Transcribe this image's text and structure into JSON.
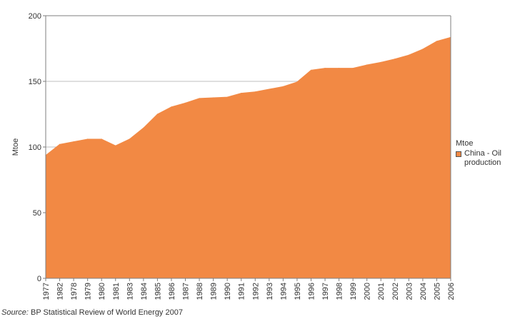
{
  "chart_data": {
    "type": "area",
    "x": [
      "1977",
      "1982",
      "1978",
      "1979",
      "1980",
      "1981",
      "1983",
      "1984",
      "1985",
      "1986",
      "1987",
      "1988",
      "1989",
      "1990",
      "1991",
      "1992",
      "1993",
      "1994",
      "1995",
      "1996",
      "1997",
      "1998",
      "1999",
      "2000",
      "2001",
      "2002",
      "2003",
      "2004",
      "2005",
      "2006"
    ],
    "series": [
      {
        "name": "China - Oil production",
        "color": "#f28944",
        "values": [
          93.6,
          102.0,
          104.0,
          106.0,
          106.0,
          101.0,
          106.0,
          114.5,
          125.0,
          130.5,
          133.5,
          137.0,
          137.5,
          138.0,
          141.0,
          142.0,
          144.0,
          146.0,
          149.5,
          158.5,
          160.0,
          160.0,
          160.0,
          162.5,
          164.5,
          167.0,
          170.0,
          174.5,
          180.5,
          183.5
        ]
      }
    ],
    "ylabel": "Mtoe",
    "ylim": [
      0,
      200
    ],
    "yticks": [
      0,
      50,
      100,
      150,
      200
    ],
    "legend_title": "Mtoe",
    "legend_position": "right",
    "grid": true
  },
  "source": {
    "label": "Source:",
    "text": "BP Statistical Review of World Energy 2007"
  }
}
